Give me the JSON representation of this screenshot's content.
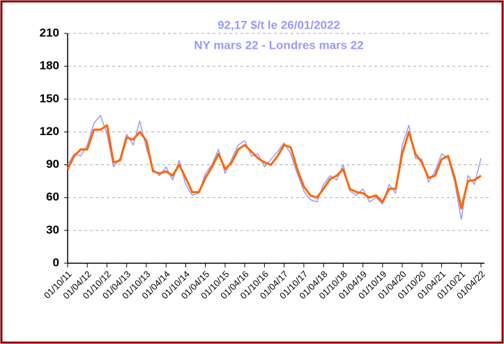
{
  "chart_data": {
    "type": "line",
    "title": "92,17 $/t le 26/01/2022",
    "subtitle": "NY mars 22 - Londres mars 22",
    "x": [
      "01/10/11",
      "01/12/11",
      "01/02/12",
      "01/04/12",
      "01/06/12",
      "01/08/12",
      "01/10/12",
      "01/12/12",
      "01/02/13",
      "01/04/13",
      "01/06/13",
      "01/08/13",
      "01/10/13",
      "01/12/13",
      "01/02/14",
      "01/04/14",
      "01/06/14",
      "01/08/14",
      "01/10/14",
      "01/12/14",
      "01/02/15",
      "01/04/15",
      "01/06/15",
      "01/08/15",
      "01/10/15",
      "01/12/15",
      "01/02/16",
      "01/04/16",
      "01/06/16",
      "01/08/16",
      "01/10/16",
      "01/12/16",
      "01/02/17",
      "01/04/17",
      "01/06/17",
      "01/08/17",
      "01/10/17",
      "01/12/17",
      "01/02/18",
      "01/04/18",
      "01/06/18",
      "01/08/18",
      "01/10/18",
      "01/12/18",
      "01/02/19",
      "01/04/19",
      "01/06/19",
      "01/08/19",
      "01/10/19",
      "01/12/19",
      "01/02/20",
      "01/04/20",
      "01/06/20",
      "01/08/20",
      "01/10/20",
      "01/12/20",
      "01/02/21",
      "01/04/21",
      "01/06/21",
      "01/08/21",
      "01/10/21",
      "01/12/21",
      "01/02/22",
      "01/04/22"
    ],
    "series": [
      {
        "color": "#9999ff",
        "values": [
          90,
          100,
          98,
          108,
          128,
          135,
          118,
          88,
          96,
          118,
          108,
          130,
          105,
          86,
          80,
          88,
          76,
          94,
          72,
          62,
          64,
          82,
          90,
          104,
          82,
          95,
          108,
          112,
          98,
          100,
          88,
          95,
          102,
          110,
          100,
          82,
          66,
          58,
          56,
          72,
          80,
          76,
          90,
          66,
          62,
          68,
          56,
          60,
          54,
          72,
          64,
          108,
          126,
          96,
          95,
          74,
          84,
          100,
          96,
          74,
          40,
          80,
          72,
          96
        ]
      },
      {
        "color": "#ff6600",
        "values": [
          86,
          98,
          104,
          104,
          122,
          122,
          126,
          92,
          94,
          115,
          113,
          120,
          112,
          84,
          82,
          84,
          80,
          90,
          78,
          65,
          65,
          78,
          88,
          100,
          86,
          92,
          104,
          108,
          102,
          96,
          92,
          90,
          98,
          108,
          106,
          86,
          70,
          62,
          60,
          68,
          77,
          80,
          86,
          68,
          65,
          64,
          60,
          62,
          56,
          68,
          68,
          100,
          120,
          100,
          92,
          78,
          80,
          95,
          98,
          78,
          50,
          75,
          76,
          80
        ]
      }
    ],
    "ylim": [
      0,
      210
    ],
    "yticks": [
      0,
      30,
      60,
      90,
      120,
      150,
      180,
      210
    ],
    "grid": true,
    "xticks": [
      "01/10/11",
      "01/04/12",
      "01/10/12",
      "01/04/13",
      "01/10/13",
      "01/04/14",
      "01/10/14",
      "01/04/15",
      "01/10/15",
      "01/04/16",
      "01/10/16",
      "01/04/17",
      "01/10/17",
      "01/04/18",
      "01/10/18",
      "01/04/19",
      "01/10/19",
      "01/04/20",
      "01/10/20",
      "01/04/21",
      "01/10/21",
      "01/04/22"
    ]
  }
}
